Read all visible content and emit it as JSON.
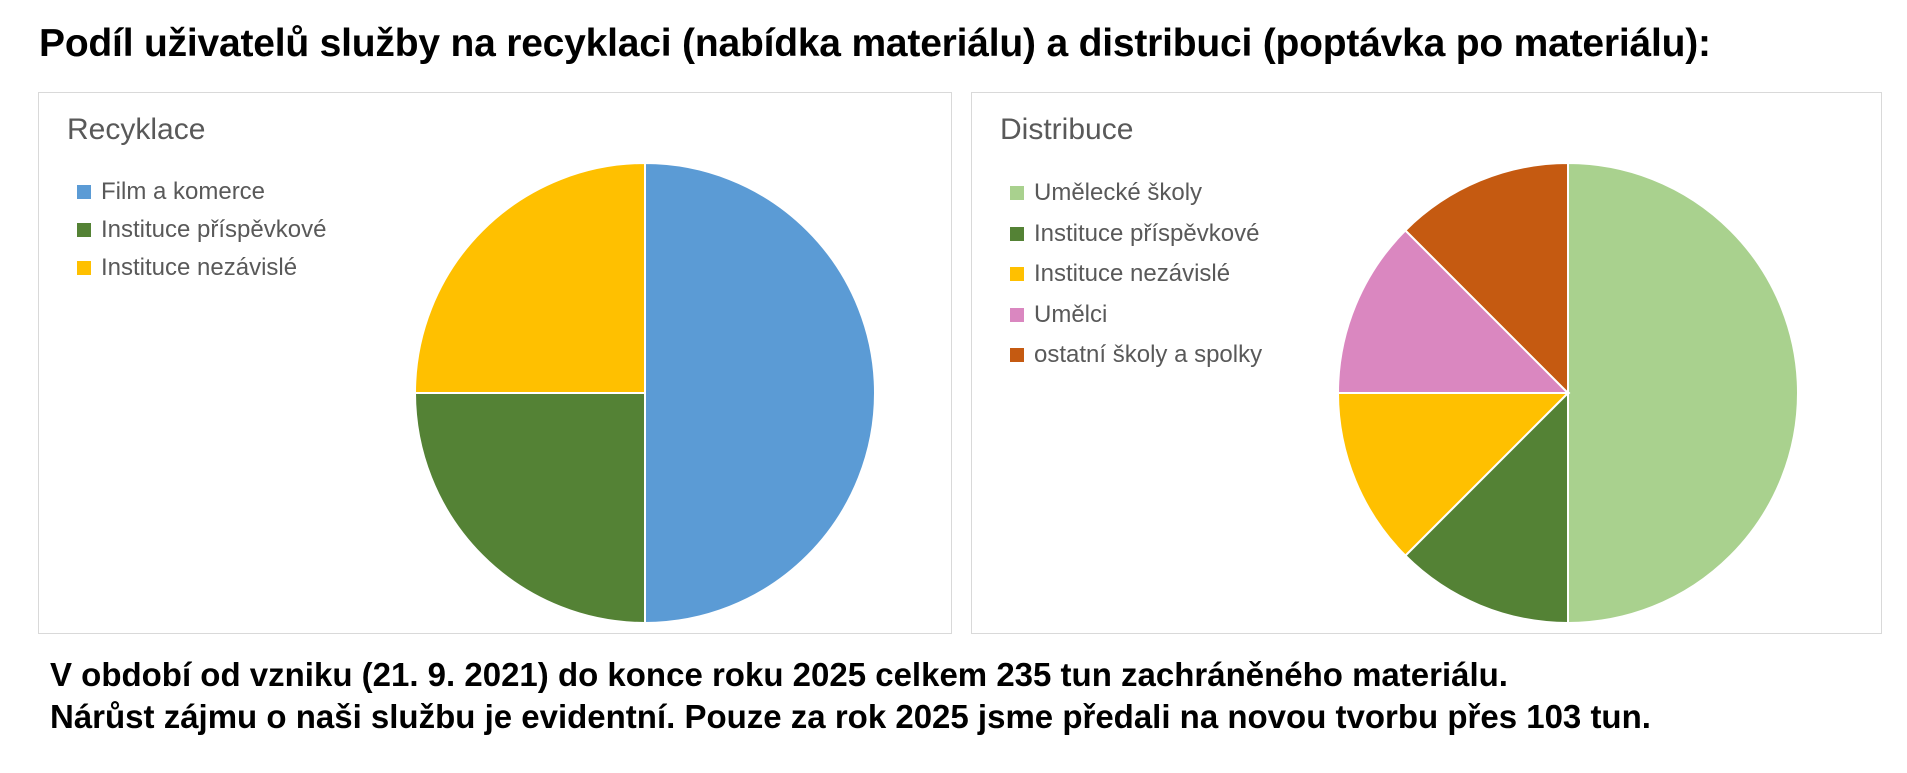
{
  "heading": "Podíl uživatelů služby na recyklaci (nabídka materiálu) a distribuci (poptávka po materiálu):",
  "chart_data": [
    {
      "type": "pie",
      "title": "Recyklace",
      "legend_position": "top-left",
      "categories": [
        "Film a komerce",
        "Instituce příspěvkové",
        "Instituce nezávislé"
      ],
      "values": [
        50,
        25,
        25
      ],
      "colors": [
        "#5b9bd5",
        "#548235",
        "#ffc000"
      ]
    },
    {
      "type": "pie",
      "title": "Distribuce",
      "legend_position": "top-left",
      "categories": [
        "Umělecké školy",
        "Instituce příspěvkové",
        "Instituce nezávislé",
        "Umělci",
        "ostatní školy a spolky"
      ],
      "values": [
        50,
        12.5,
        12.5,
        12.5,
        12.5
      ],
      "colors": [
        "#a9d18e",
        "#548235",
        "#ffc000",
        "#da87c0",
        "#c55a11"
      ]
    }
  ],
  "footer": {
    "line1": "V období od vzniku (21. 9. 2021) do konce roku 2025 celkem 235 tun zachráněného materiálu.",
    "line2": "Nárůst zájmu o naši službu je evidentní. Pouze za rok 2025 jsme předali na novou tvorbu přes 103 tun."
  }
}
